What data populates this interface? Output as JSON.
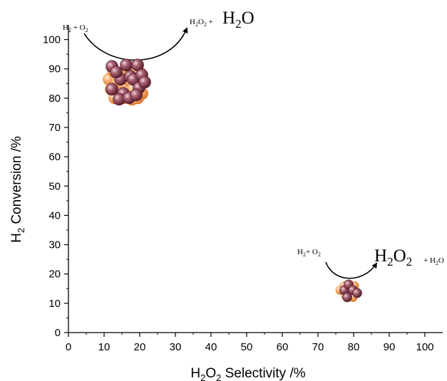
{
  "chart_data": {
    "type": "scatter",
    "title": "",
    "xlabel": {
      "main": "H",
      "sub": "2",
      "main2": "O",
      "sub2": "2",
      "rest": " Selectivity /%"
    },
    "ylabel": {
      "main": "H",
      "sub": "2",
      "rest": " Conversion /%"
    },
    "xlim": [
      0,
      105
    ],
    "ylim": [
      0,
      105
    ],
    "xticks": [
      0,
      10,
      20,
      30,
      40,
      50,
      60,
      70,
      80,
      90,
      100
    ],
    "yticks": [
      0,
      10,
      20,
      30,
      40,
      50,
      60,
      70,
      80,
      90,
      100
    ],
    "grid": false,
    "points": [
      {
        "x": 17,
        "y": 85,
        "marker": "large-nanoparticle-cluster"
      },
      {
        "x": 79,
        "y": 14,
        "marker": "small-nanoparticle-cluster"
      }
    ],
    "annotations": [
      {
        "id": "large",
        "reactants": {
          "a": "H",
          "a_sub": "2",
          "b": " + O",
          "b_sub": "2"
        },
        "products": {
          "a": "H",
          "a_sub": "2",
          "b": "O",
          "b_sub": "2",
          "c": " + "
        },
        "major_product": {
          "a": "H",
          "a_sub": "2",
          "b": "O"
        }
      },
      {
        "id": "small",
        "reactants": {
          "a": "H",
          "a_sub": "2",
          "b": "+ O",
          "b_sub": "2"
        },
        "major_product": {
          "a": "H",
          "a_sub": "2",
          "b": "O",
          "b_sub": "2"
        },
        "minor_product": {
          "a": "+ H",
          "a_sub": "2",
          "b": "O"
        }
      }
    ],
    "colors": {
      "axis": "#000000",
      "particle_maroon": "#8e3b4c",
      "particle_orange": "#f6a868"
    }
  }
}
